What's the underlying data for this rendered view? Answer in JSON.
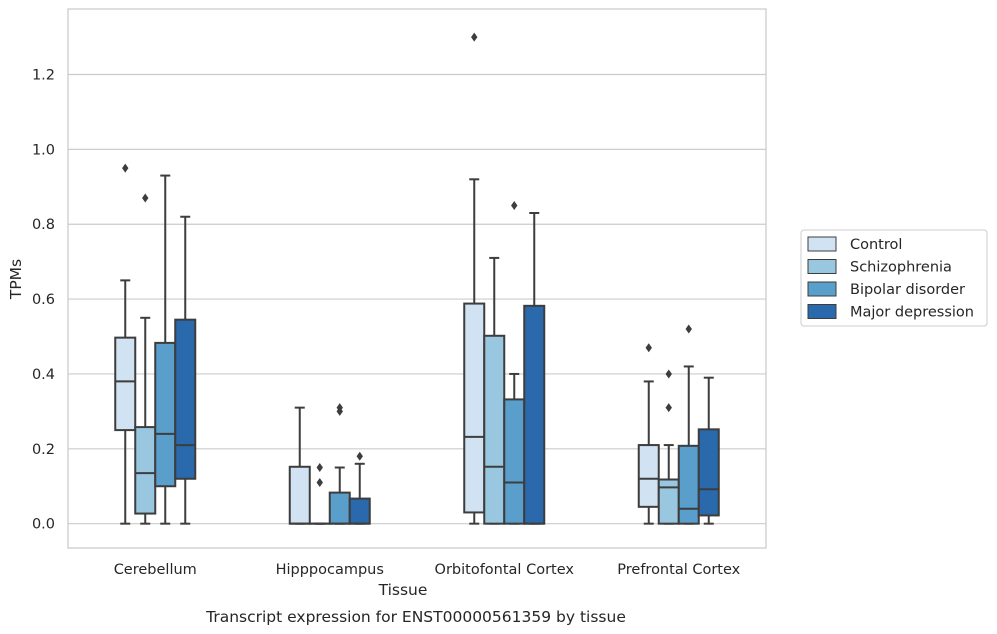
{
  "chart_data": {
    "type": "box",
    "title": "",
    "caption": "Transcript expression for ENST00000561359 by tissue",
    "xlabel": "Tissue",
    "ylabel": "TPMs",
    "ylim": [
      -0.065,
      1.375
    ],
    "yticks": [
      "0.0",
      "0.2",
      "0.4",
      "0.6",
      "0.8",
      "1.0",
      "1.2"
    ],
    "grid": true,
    "legend_position": "right",
    "categories": [
      "Cerebellum",
      "Hipppocampus",
      "Orbitofontal Cortex",
      "Prefrontal Cortex"
    ],
    "series": [
      {
        "name": "Control",
        "color": "#d1e2f2",
        "boxes": [
          {
            "whisker_low": 0.0,
            "q1": 0.25,
            "median": 0.38,
            "q3": 0.497,
            "whisker_high": 0.65,
            "outliers": [
              0.95
            ]
          },
          {
            "whisker_low": 0.0,
            "q1": 0.0,
            "median": 0.0,
            "q3": 0.152,
            "whisker_high": 0.31,
            "outliers": []
          },
          {
            "whisker_low": 0.0,
            "q1": 0.03,
            "median": 0.232,
            "q3": 0.588,
            "whisker_high": 0.92,
            "outliers": [
              1.3
            ]
          },
          {
            "whisker_low": 0.0,
            "q1": 0.045,
            "median": 0.12,
            "q3": 0.21,
            "whisker_high": 0.38,
            "outliers": [
              0.47
            ]
          }
        ]
      },
      {
        "name": "Schizophrenia",
        "color": "#9ac7e0",
        "boxes": [
          {
            "whisker_low": 0.0,
            "q1": 0.027,
            "median": 0.135,
            "q3": 0.258,
            "whisker_high": 0.55,
            "outliers": [
              0.87
            ]
          },
          {
            "whisker_low": 0.0,
            "q1": 0.0,
            "median": 0.0,
            "q3": 0.0,
            "whisker_high": 0.0,
            "outliers": [
              0.11,
              0.15
            ]
          },
          {
            "whisker_low": 0.0,
            "q1": 0.0,
            "median": 0.152,
            "q3": 0.502,
            "whisker_high": 0.71,
            "outliers": []
          },
          {
            "whisker_low": 0.0,
            "q1": 0.0,
            "median": 0.097,
            "q3": 0.118,
            "whisker_high": 0.21,
            "outliers": [
              0.31,
              0.4
            ]
          }
        ]
      },
      {
        "name": "Bipolar disorder",
        "color": "#5a9ecc",
        "boxes": [
          {
            "whisker_low": 0.0,
            "q1": 0.1,
            "median": 0.24,
            "q3": 0.483,
            "whisker_high": 0.93,
            "outliers": []
          },
          {
            "whisker_low": 0.0,
            "q1": 0.0,
            "median": 0.0,
            "q3": 0.083,
            "whisker_high": 0.15,
            "outliers": [
              0.3,
              0.31
            ]
          },
          {
            "whisker_low": 0.0,
            "q1": 0.0,
            "median": 0.11,
            "q3": 0.332,
            "whisker_high": 0.4,
            "outliers": [
              0.85
            ]
          },
          {
            "whisker_low": 0.0,
            "q1": 0.0,
            "median": 0.04,
            "q3": 0.208,
            "whisker_high": 0.42,
            "outliers": [
              0.52
            ]
          }
        ]
      },
      {
        "name": "Major depression",
        "color": "#2a69ab",
        "boxes": [
          {
            "whisker_low": 0.0,
            "q1": 0.12,
            "median": 0.21,
            "q3": 0.545,
            "whisker_high": 0.82,
            "outliers": []
          },
          {
            "whisker_low": 0.0,
            "q1": 0.0,
            "median": 0.0,
            "q3": 0.067,
            "whisker_high": 0.16,
            "outliers": [
              0.18
            ]
          },
          {
            "whisker_low": 0.0,
            "q1": 0.0,
            "median": 0.0,
            "q3": 0.582,
            "whisker_high": 0.83,
            "outliers": []
          },
          {
            "whisker_low": 0.0,
            "q1": 0.022,
            "median": 0.092,
            "q3": 0.252,
            "whisker_high": 0.39,
            "outliers": []
          }
        ]
      }
    ]
  }
}
